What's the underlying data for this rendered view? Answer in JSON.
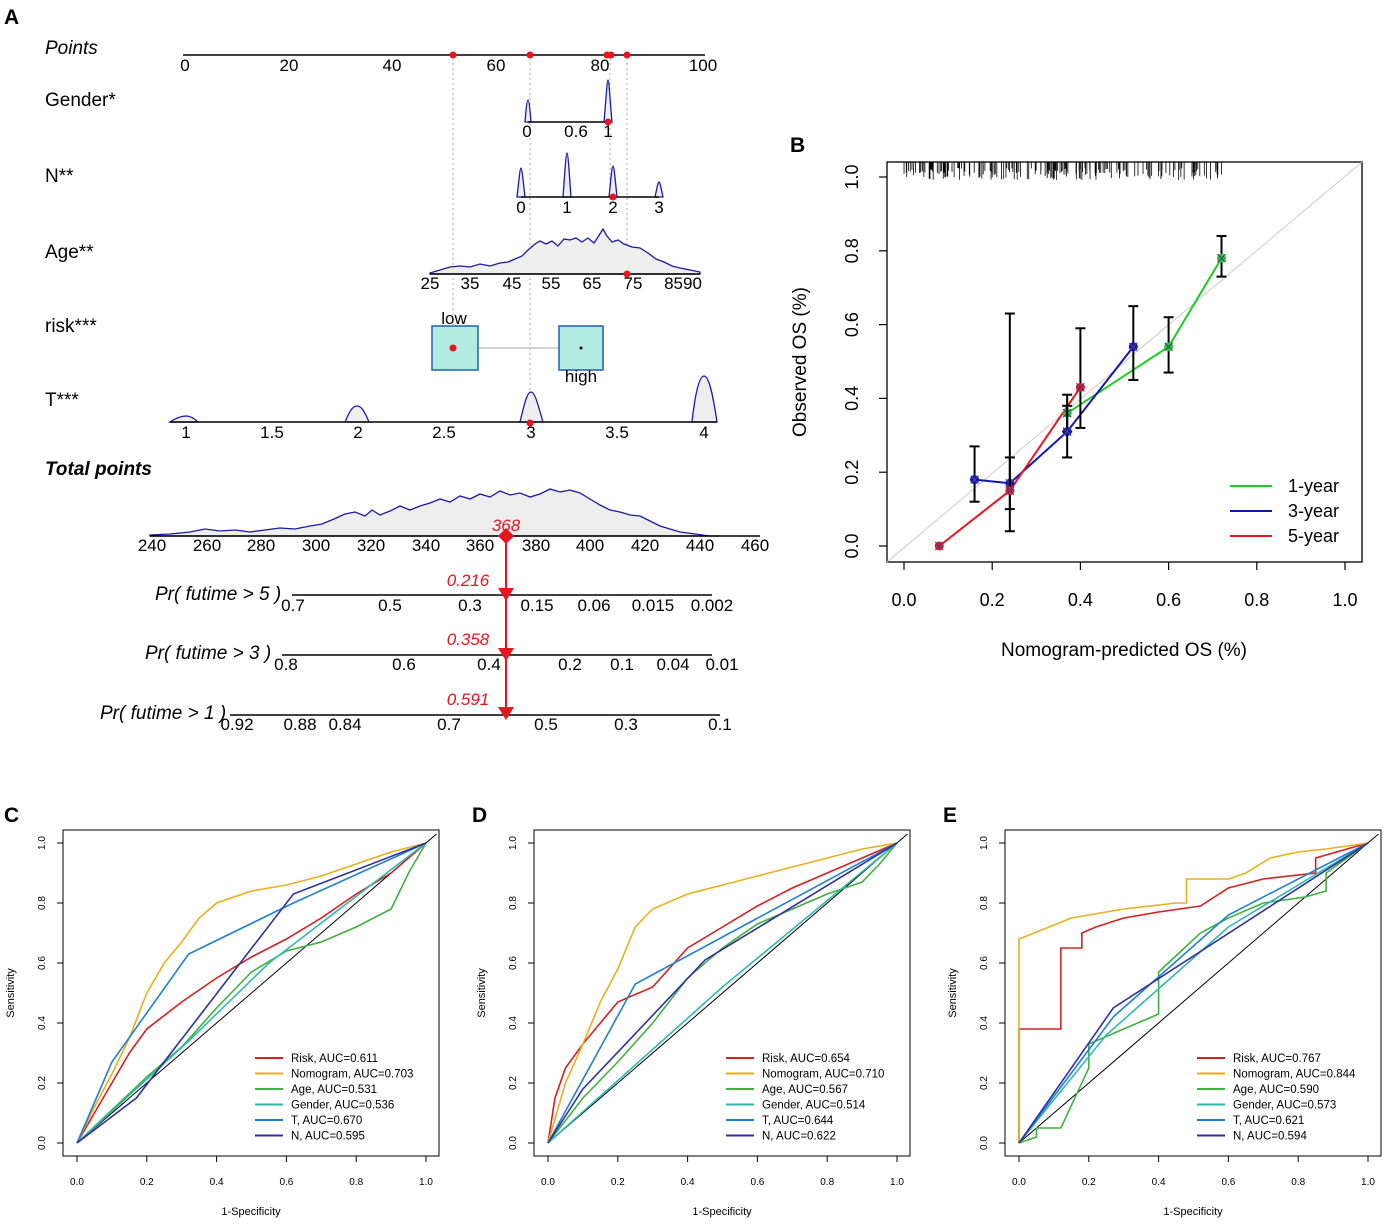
{
  "panels": {
    "A": "A",
    "B": "B",
    "C": "C",
    "D": "D",
    "E": "E"
  },
  "nomogram": {
    "points": {
      "label": "Points",
      "ticks": [
        "0",
        "20",
        "40",
        "60",
        "80",
        "100"
      ]
    },
    "variables": [
      {
        "label": "Gender*",
        "ticks": [
          "0",
          "0.6",
          "1"
        ],
        "selected": "1"
      },
      {
        "label": "N**",
        "ticks": [
          "0",
          "1",
          "2",
          "3"
        ],
        "selected": "2"
      },
      {
        "label": "Age**",
        "ticks": [
          "25",
          "35",
          "45",
          "55",
          "65",
          "75",
          "8590"
        ],
        "selected": "75"
      },
      {
        "label": "risk***",
        "levels": [
          "low",
          "high"
        ],
        "selected": "low"
      },
      {
        "label": "T***",
        "ticks": [
          "1",
          "1.5",
          "2",
          "2.5",
          "3",
          "3.5",
          "4"
        ],
        "selected": "3"
      }
    ],
    "total_points": {
      "label": "Total points",
      "ticks": [
        "240",
        "260",
        "280",
        "300",
        "320",
        "340",
        "360",
        "380",
        "400",
        "420",
        "440",
        "460"
      ],
      "value": 368,
      "value_label": "368"
    },
    "probabilities": [
      {
        "label": "Pr( futime > 5 )",
        "value": "0.216",
        "ticks": [
          "0.7",
          "0.5",
          "0.3",
          "0.15",
          "0.06",
          "0.015",
          "0.002"
        ]
      },
      {
        "label": "Pr( futime > 3 )",
        "value": "0.358",
        "ticks": [
          "0.8",
          "0.6",
          "0.4",
          "0.2",
          "0.1",
          "0.04",
          "0.01"
        ]
      },
      {
        "label": "Pr( futime > 1 )",
        "value": "0.591",
        "ticks": [
          "0.92",
          "0.88",
          "0.84",
          "0.7",
          "0.5",
          "0.3",
          "0.1"
        ]
      }
    ],
    "colors": {
      "density": "#1a1aaa",
      "marker": "#e8141e",
      "box_fill": "#b2ece0",
      "box_edge": "#1f5fb0"
    }
  },
  "chart_data": [
    {
      "panel": "B",
      "type": "line",
      "title": "",
      "xlabel": "Nomogram-predicted OS (%)",
      "ylabel": "Observed OS (%)",
      "xlim": [
        0,
        1
      ],
      "ylim": [
        0,
        1
      ],
      "x_ticks": [
        "0.0",
        "0.2",
        "0.4",
        "0.6",
        "0.8",
        "1.0"
      ],
      "y_ticks": [
        "0.0",
        "0.2",
        "0.4",
        "0.6",
        "0.8",
        "1.0"
      ],
      "legend_position": "bottom-right",
      "series": [
        {
          "name": "1-year",
          "color": "#22cc22",
          "points": [
            {
              "x": 0.37,
              "y": 0.36,
              "lo": 0.31,
              "hi": 0.41
            },
            {
              "x": 0.6,
              "y": 0.54,
              "lo": 0.47,
              "hi": 0.62
            },
            {
              "x": 0.72,
              "y": 0.78,
              "lo": 0.73,
              "hi": 0.84
            }
          ]
        },
        {
          "name": "3-year",
          "color": "#1515b0",
          "points": [
            {
              "x": 0.16,
              "y": 0.18,
              "lo": 0.12,
              "hi": 0.27
            },
            {
              "x": 0.24,
              "y": 0.17,
              "lo": 0.1,
              "hi": 0.24
            },
            {
              "x": 0.37,
              "y": 0.31,
              "lo": 0.24,
              "hi": 0.38
            },
            {
              "x": 0.52,
              "y": 0.54,
              "lo": 0.45,
              "hi": 0.65
            }
          ]
        },
        {
          "name": "5-year",
          "color": "#e8141e",
          "points": [
            {
              "x": 0.08,
              "y": 0.0,
              "lo": 0.0,
              "hi": 0.0
            },
            {
              "x": 0.24,
              "y": 0.15,
              "lo": 0.04,
              "hi": 0.63
            },
            {
              "x": 0.4,
              "y": 0.43,
              "lo": 0.32,
              "hi": 0.59
            }
          ]
        }
      ]
    },
    {
      "panel": "C",
      "type": "line",
      "xlabel": "1-Specificity",
      "ylabel": "Sensitivity",
      "xlim": [
        0,
        1
      ],
      "ylim": [
        0,
        1
      ],
      "x_ticks": [
        "0.0",
        "0.2",
        "0.4",
        "0.6",
        "0.8",
        "1.0"
      ],
      "y_ticks": [
        "0.0",
        "0.2",
        "0.4",
        "0.6",
        "0.8",
        "1.0"
      ],
      "legend_position": "bottom-right",
      "series": [
        {
          "name": "Risk, AUC=0.611",
          "color": "#d42020",
          "x": [
            0,
            0.05,
            0.1,
            0.15,
            0.2,
            0.3,
            0.4,
            0.5,
            0.6,
            0.7,
            0.8,
            0.9,
            1
          ],
          "y": [
            0,
            0.1,
            0.2,
            0.3,
            0.38,
            0.47,
            0.55,
            0.62,
            0.68,
            0.75,
            0.83,
            0.9,
            1
          ]
        },
        {
          "name": "Nomogram, AUC=0.703",
          "color": "#e8b020",
          "x": [
            0,
            0.05,
            0.1,
            0.15,
            0.2,
            0.25,
            0.3,
            0.35,
            0.4,
            0.5,
            0.6,
            0.7,
            0.8,
            0.9,
            1
          ],
          "y": [
            0,
            0.12,
            0.23,
            0.35,
            0.5,
            0.6,
            0.67,
            0.75,
            0.8,
            0.84,
            0.86,
            0.89,
            0.93,
            0.97,
            1
          ]
        },
        {
          "name": "Age, AUC=0.531",
          "color": "#40b040",
          "x": [
            0,
            0.2,
            0.3,
            0.4,
            0.5,
            0.6,
            0.7,
            0.8,
            0.9,
            0.95,
            1
          ],
          "y": [
            0,
            0.22,
            0.32,
            0.45,
            0.57,
            0.64,
            0.67,
            0.72,
            0.78,
            0.9,
            1
          ]
        },
        {
          "name": "Gender, AUC=0.536",
          "color": "#30b8b0",
          "x": [
            0,
            0.32,
            0.55,
            1
          ],
          "y": [
            0,
            0.34,
            0.6,
            1
          ]
        },
        {
          "name": "T, AUC=0.670",
          "color": "#2080d0",
          "x": [
            0,
            0.1,
            0.32,
            0.62,
            1
          ],
          "y": [
            0,
            0.27,
            0.63,
            0.8,
            1
          ]
        },
        {
          "name": "N, AUC=0.595",
          "color": "#3030a0",
          "x": [
            0,
            0.17,
            0.62,
            1
          ],
          "y": [
            0,
            0.15,
            0.83,
            1
          ]
        }
      ]
    },
    {
      "panel": "D",
      "type": "line",
      "xlabel": "1-Specificity",
      "ylabel": "Sensitivity",
      "xlim": [
        0,
        1
      ],
      "ylim": [
        0,
        1
      ],
      "x_ticks": [
        "0.0",
        "0.2",
        "0.4",
        "0.6",
        "0.8",
        "1.0"
      ],
      "y_ticks": [
        "0.0",
        "0.2",
        "0.4",
        "0.6",
        "0.8",
        "1.0"
      ],
      "legend_position": "bottom-right",
      "series": [
        {
          "name": "Risk, AUC=0.654",
          "color": "#d42020",
          "x": [
            0,
            0.02,
            0.05,
            0.1,
            0.15,
            0.2,
            0.3,
            0.4,
            0.5,
            0.6,
            0.7,
            0.8,
            0.9,
            1
          ],
          "y": [
            0,
            0.15,
            0.25,
            0.33,
            0.4,
            0.47,
            0.52,
            0.65,
            0.72,
            0.79,
            0.85,
            0.9,
            0.95,
            1
          ]
        },
        {
          "name": "Nomogram, AUC=0.710",
          "color": "#e8b020",
          "x": [
            0,
            0.05,
            0.1,
            0.15,
            0.2,
            0.25,
            0.3,
            0.4,
            0.5,
            0.6,
            0.7,
            0.8,
            0.9,
            1
          ],
          "y": [
            0,
            0.2,
            0.33,
            0.47,
            0.58,
            0.72,
            0.78,
            0.83,
            0.86,
            0.89,
            0.92,
            0.95,
            0.98,
            1
          ]
        },
        {
          "name": "Age, AUC=0.567",
          "color": "#40b040",
          "x": [
            0,
            0.1,
            0.2,
            0.3,
            0.4,
            0.5,
            0.6,
            0.7,
            0.8,
            0.9,
            0.95,
            1
          ],
          "y": [
            0,
            0.15,
            0.27,
            0.4,
            0.55,
            0.65,
            0.73,
            0.78,
            0.83,
            0.87,
            0.93,
            1
          ]
        },
        {
          "name": "Gender, AUC=0.514",
          "color": "#30b8b0",
          "x": [
            0,
            0.5,
            1
          ],
          "y": [
            0,
            0.52,
            1
          ]
        },
        {
          "name": "T, AUC=0.644",
          "color": "#2080d0",
          "x": [
            0,
            0.25,
            1
          ],
          "y": [
            0,
            0.53,
            1
          ]
        },
        {
          "name": "N, AUC=0.622",
          "color": "#3030a0",
          "x": [
            0,
            0.1,
            0.45,
            1
          ],
          "y": [
            0,
            0.18,
            0.61,
            1
          ]
        }
      ]
    },
    {
      "panel": "E",
      "type": "line",
      "xlabel": "1-Specificity",
      "ylabel": "Sensitivity",
      "xlim": [
        0,
        1
      ],
      "ylim": [
        0,
        1
      ],
      "x_ticks": [
        "0.0",
        "0.2",
        "0.4",
        "0.6",
        "0.8",
        "1.0"
      ],
      "y_ticks": [
        "0.0",
        "0.2",
        "0.4",
        "0.6",
        "0.8",
        "1.0"
      ],
      "legend_position": "bottom-right",
      "series": [
        {
          "name": "Risk, AUC=0.767",
          "color": "#d42020",
          "x": [
            0,
            0,
            0.12,
            0.12,
            0.18,
            0.18,
            0.22,
            0.3,
            0.4,
            0.52,
            0.6,
            0.7,
            0.85,
            0.85,
            1
          ],
          "y": [
            0,
            0.38,
            0.38,
            0.65,
            0.65,
            0.7,
            0.72,
            0.75,
            0.77,
            0.79,
            0.85,
            0.88,
            0.9,
            0.95,
            1
          ]
        },
        {
          "name": "Nomogram, AUC=0.844",
          "color": "#e8b020",
          "x": [
            0,
            0,
            0.15,
            0.3,
            0.45,
            0.48,
            0.48,
            0.6,
            0.65,
            0.72,
            0.8,
            0.88,
            1
          ],
          "y": [
            0,
            0.68,
            0.75,
            0.78,
            0.8,
            0.8,
            0.88,
            0.88,
            0.9,
            0.95,
            0.97,
            0.98,
            1
          ]
        },
        {
          "name": "Age, AUC=0.590",
          "color": "#40b040",
          "x": [
            0,
            0.05,
            0.05,
            0.12,
            0.2,
            0.2,
            0.3,
            0.4,
            0.4,
            0.52,
            0.6,
            0.7,
            0.82,
            0.88,
            0.88,
            1
          ],
          "y": [
            0,
            0.02,
            0.05,
            0.05,
            0.25,
            0.33,
            0.38,
            0.43,
            0.57,
            0.7,
            0.75,
            0.8,
            0.82,
            0.84,
            0.9,
            1
          ]
        },
        {
          "name": "Gender, AUC=0.573",
          "color": "#30b8b0",
          "x": [
            0,
            0.25,
            0.6,
            1
          ],
          "y": [
            0,
            0.36,
            0.72,
            1
          ]
        },
        {
          "name": "T, AUC=0.621",
          "color": "#2080d0",
          "x": [
            0,
            0.27,
            0.6,
            1
          ],
          "y": [
            0,
            0.42,
            0.76,
            1
          ]
        },
        {
          "name": "N, AUC=0.594",
          "color": "#3030a0",
          "x": [
            0,
            0.27,
            1
          ],
          "y": [
            0,
            0.45,
            1
          ]
        }
      ]
    }
  ]
}
